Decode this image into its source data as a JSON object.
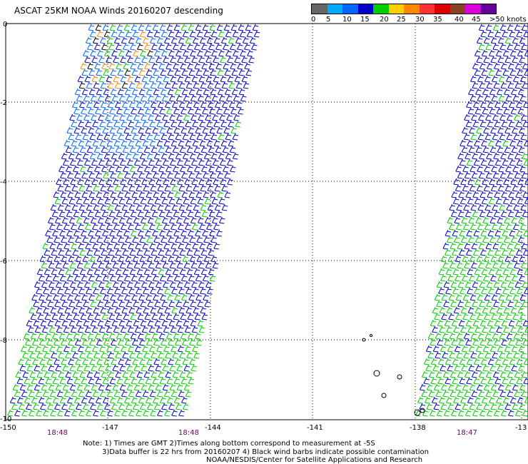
{
  "title": "ASCAT 25KM NOAA Winds 20160207 descending",
  "legend": {
    "colors": [
      "#666666",
      "#00aaff",
      "#0066ff",
      "#0000cc",
      "#00cc00",
      "#ffcc00",
      "#ff8800",
      "#ff3333",
      "#dd0000",
      "#884422",
      "#dd00dd",
      "#660099"
    ],
    "labels": [
      "0",
      "5",
      "10",
      "15",
      "20",
      "25",
      "30",
      "35",
      "40",
      "45",
      ">50 knots"
    ]
  },
  "map": {
    "lon_ticks": [
      "-150",
      "-147",
      "-144",
      "-141",
      "-138",
      "-13"
    ],
    "lat_ticks": [
      "0",
      "-2",
      "-4",
      "-6",
      "-8",
      "-10"
    ],
    "swath_times": [
      "18:48",
      "18:48",
      "18:47"
    ]
  },
  "notes": {
    "line1": "Note: 1) Times are GMT 2)Times along bottom correspond to measurement at -5S",
    "line2": "3)Data buffer is 22 hrs from 20160207 4) Black wind barbs indicate possible contamination",
    "line3": "NOAA/NESDIS/Center for Satellite Applications and Research"
  }
}
